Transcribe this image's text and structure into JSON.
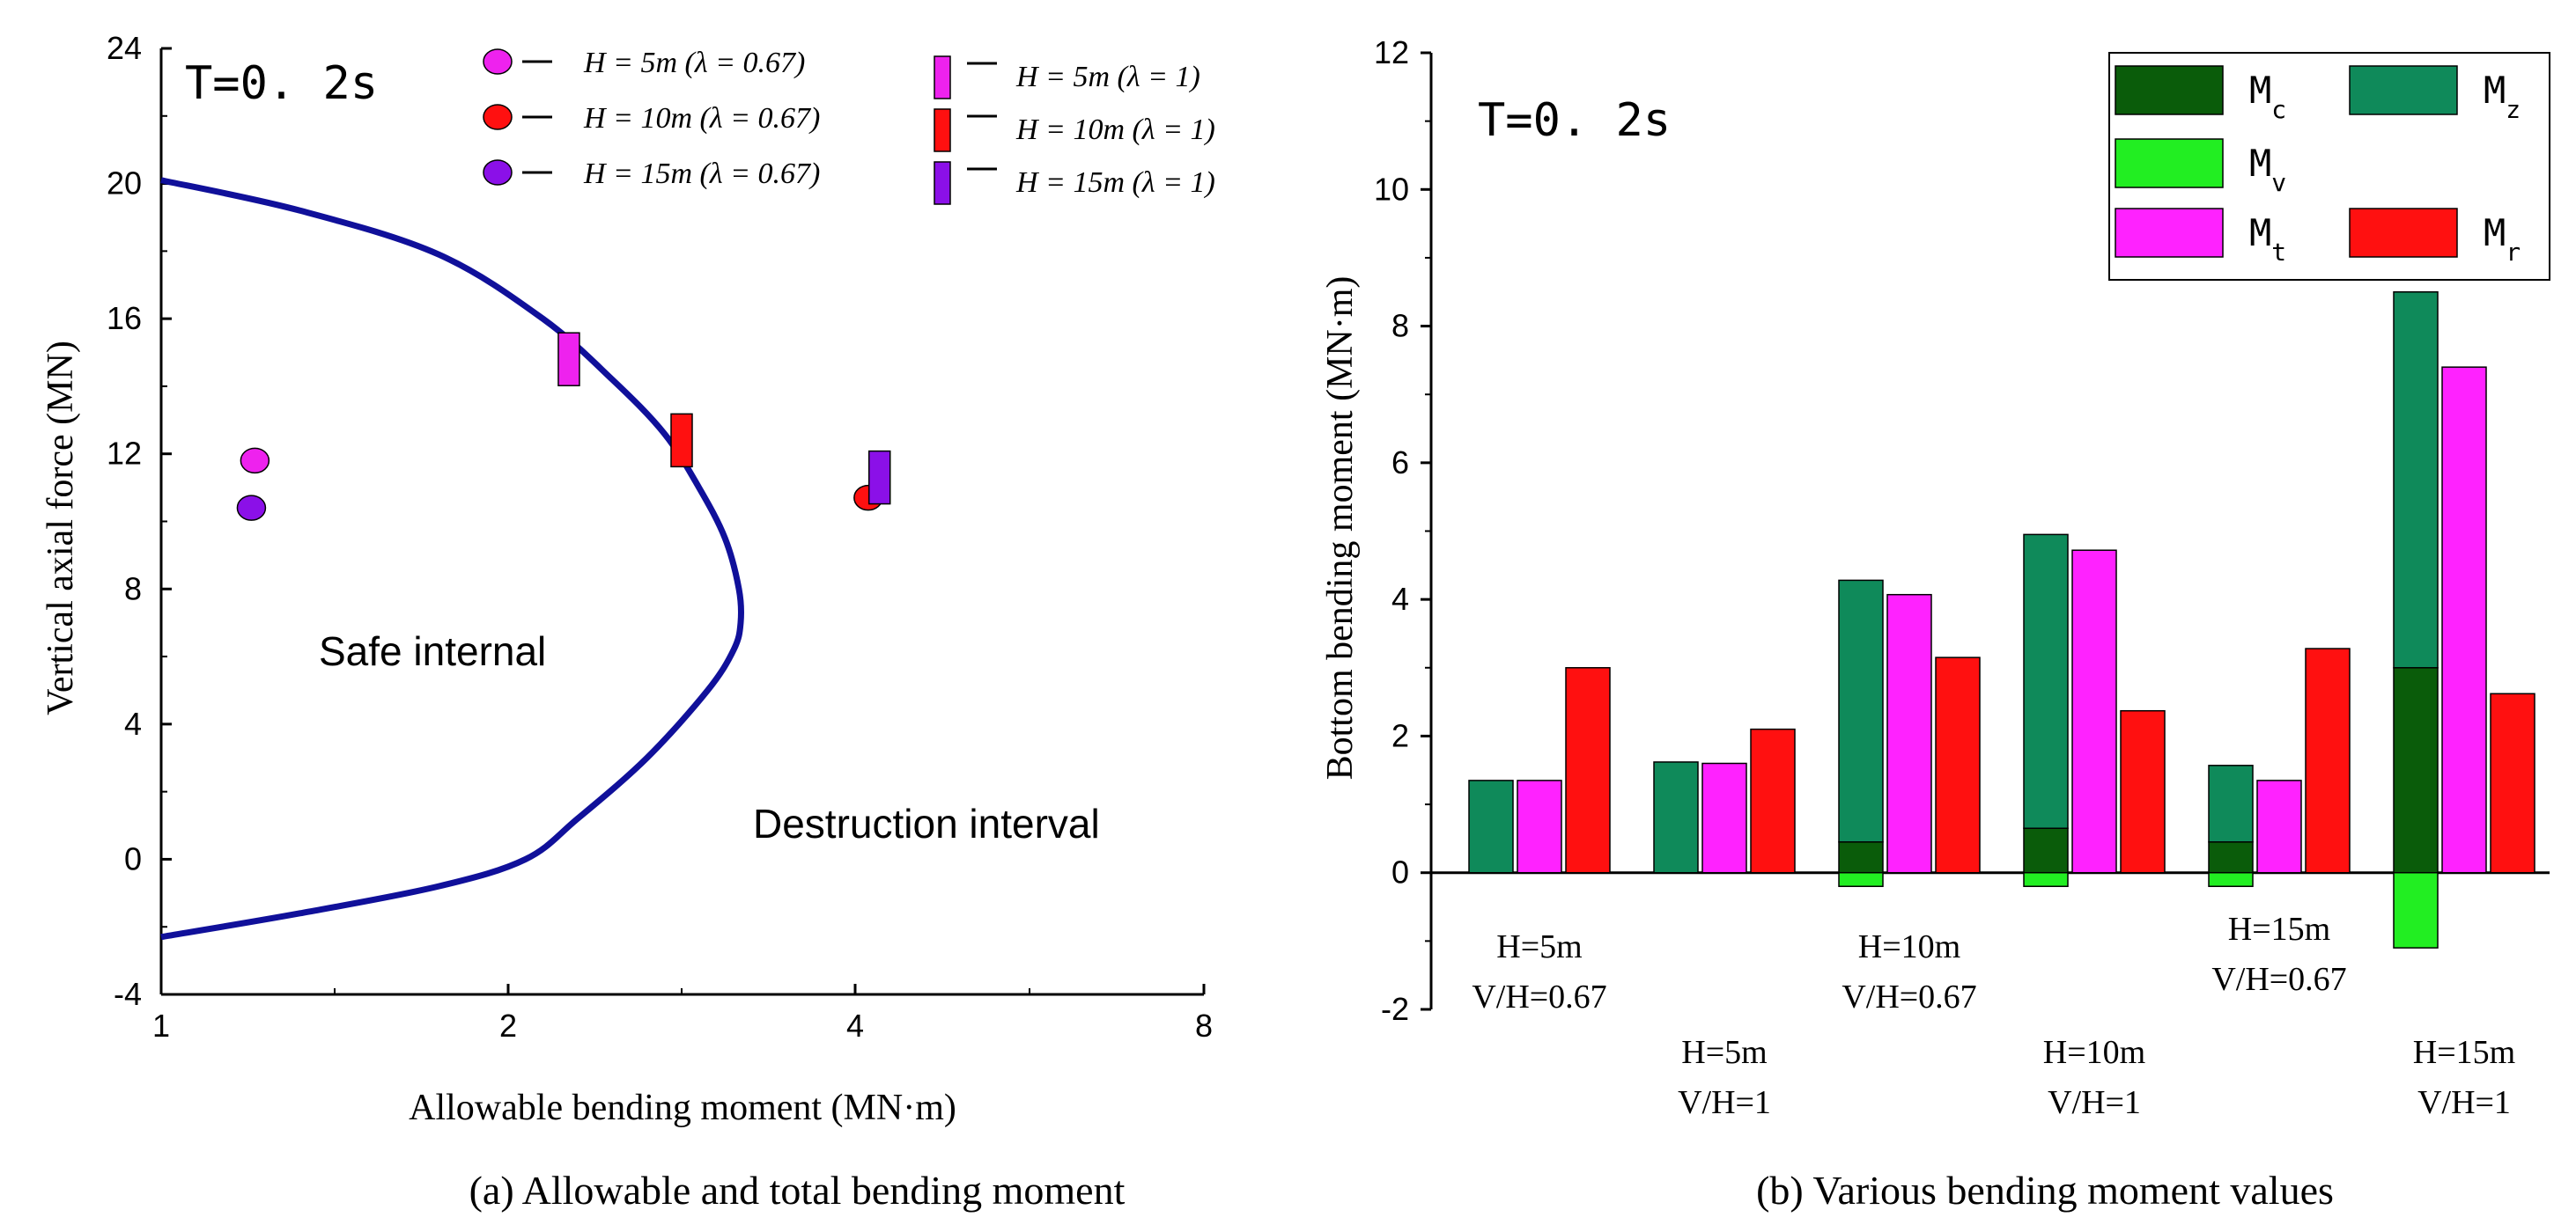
{
  "chart_data": [
    {
      "type": "scatter",
      "panel": "a",
      "tag": "T=0. 2s",
      "caption": "(a) Allowable and total bending moment",
      "xlabel": "Allowable bending moment (MN·m)",
      "ylabel": "Vertical axial force (MN)",
      "x_tick_labels": [
        "1",
        "2",
        "4",
        "8"
      ],
      "y_ticks": [
        -4,
        0,
        4,
        8,
        12,
        16,
        20,
        24
      ],
      "ylim": [
        -4,
        24
      ],
      "region_labels": [
        "Safe internal",
        "Destruction interval"
      ],
      "boundary_curve": {
        "name": "allowable envelope",
        "color": "#10109a",
        "points": [
          [
            1.0,
            20.1
          ],
          [
            1.4,
            19.2
          ],
          [
            1.8,
            17.9
          ],
          [
            2.2,
            16.0
          ],
          [
            2.6,
            14.2
          ],
          [
            2.9,
            12.6
          ],
          [
            3.1,
            11.0
          ],
          [
            3.25,
            9.5
          ],
          [
            3.33,
            8.0
          ],
          [
            3.34,
            7.0
          ],
          [
            3.3,
            6.2
          ],
          [
            3.15,
            5.0
          ],
          [
            2.8,
            3.0
          ],
          [
            2.4,
            1.2
          ],
          [
            2.1,
            0.0
          ],
          [
            1.8,
            -0.8
          ],
          [
            1.4,
            -1.6
          ],
          [
            1.0,
            -2.3
          ]
        ]
      },
      "series": [
        {
          "name": "H = 5m (λ = 0.67)",
          "marker": "circle",
          "color": "#ee22ee",
          "x": 1.27,
          "y": 11.8
        },
        {
          "name": "H = 10m (λ = 0.67)",
          "marker": "circle",
          "color": "#ff1010",
          "x": 4.15,
          "y": 10.7
        },
        {
          "name": "H = 15m (λ = 0.67)",
          "marker": "circle",
          "color": "#8b10e8",
          "x": 1.26,
          "y": 10.4
        },
        {
          "name": "H = 5m (λ = 1)",
          "marker": "rect",
          "color": "#ee22ee",
          "x": 2.35,
          "y": 14.8
        },
        {
          "name": "H = 10m (λ = 1)",
          "marker": "rect",
          "color": "#ff1010",
          "x": 3.0,
          "y": 12.4
        },
        {
          "name": "H = 15m (λ = 1)",
          "marker": "rect",
          "color": "#8b10e8",
          "x": 4.28,
          "y": 11.3
        }
      ]
    },
    {
      "type": "bar",
      "panel": "b",
      "tag": "T=0. 2s",
      "caption": "(b) Various bending moment values",
      "ylabel": "Bottom bending moment (MN·m)",
      "y_ticks": [
        -2,
        0,
        2,
        4,
        6,
        8,
        10,
        12
      ],
      "ylim": [
        -2,
        12
      ],
      "categories": [
        {
          "line1": "H=5m",
          "line2": "V/H=0.67"
        },
        {
          "line1": "H=5m",
          "line2": "V/H=1"
        },
        {
          "line1": "H=10m",
          "line2": "V/H=0.67"
        },
        {
          "line1": "H=10m",
          "line2": "V/H=1"
        },
        {
          "line1": "H=15m",
          "line2": "V/H=0.67"
        },
        {
          "line1": "H=15m",
          "line2": "V/H=1"
        }
      ],
      "series": [
        {
          "name": "M",
          "sub": "c",
          "color": "#0a5c0a",
          "values": [
            0,
            0,
            0.45,
            0.65,
            0.45,
            3.0
          ]
        },
        {
          "name": "M",
          "sub": "v",
          "color": "#22ee22",
          "values": [
            0,
            0,
            -0.2,
            -0.2,
            -0.2,
            -1.1
          ]
        },
        {
          "name": "M",
          "sub": "z",
          "color": "#0f8a5a",
          "values": [
            1.35,
            1.62,
            4.28,
            4.95,
            1.57,
            8.5
          ]
        },
        {
          "name": "M",
          "sub": "t",
          "color": "#ff22ff",
          "values": [
            1.35,
            1.6,
            4.07,
            4.72,
            1.35,
            7.4
          ]
        },
        {
          "name": "M",
          "sub": "r",
          "color": "#ff1010",
          "values": [
            3.0,
            2.1,
            3.15,
            2.37,
            3.28,
            2.62
          ]
        }
      ]
    }
  ]
}
